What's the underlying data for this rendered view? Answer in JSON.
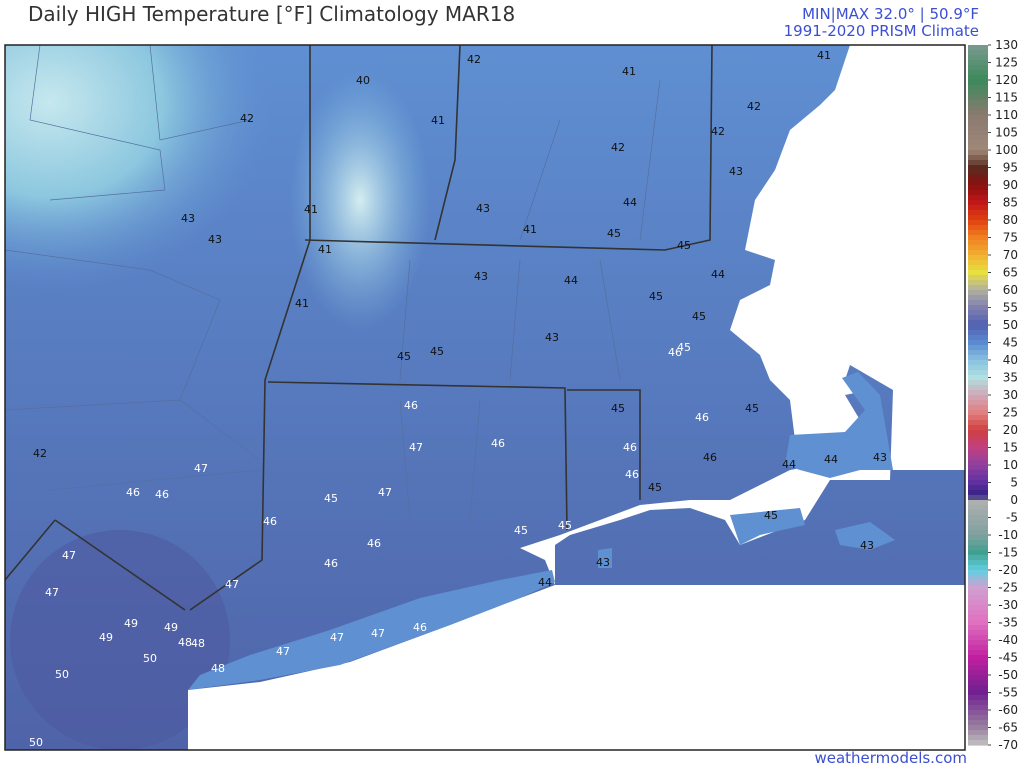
{
  "header": {
    "title": "Daily HIGH Temperature [°F]  Climatology MAR18",
    "minmax": "MIN|MAX 32.0° | 50.9°F",
    "source": "1991-2020 PRISM Climate"
  },
  "footer": {
    "credit": "weathermodels.com"
  },
  "map": {
    "labels": [
      40,
      42,
      41,
      41,
      42,
      42,
      41,
      42,
      42,
      43,
      43,
      43,
      41,
      43,
      44,
      41,
      45,
      45,
      41,
      43,
      44,
      44,
      45,
      41,
      45,
      43,
      45,
      46,
      45,
      45,
      46,
      47,
      46,
      45,
      46,
      45,
      46,
      46,
      45,
      46,
      44,
      44,
      43,
      42,
      47,
      46,
      46,
      45,
      47,
      46,
      45,
      45,
      46,
      46,
      45,
      43,
      43,
      44,
      47,
      47,
      47,
      49,
      49,
      49,
      48,
      48,
      50,
      48,
      47,
      47,
      47,
      46,
      50,
      50
    ],
    "colorbar_ticks": [
      130,
      125,
      120,
      115,
      110,
      105,
      100,
      95,
      90,
      85,
      80,
      75,
      70,
      65,
      60,
      55,
      50,
      45,
      40,
      35,
      30,
      25,
      20,
      15,
      10,
      5,
      0,
      -5,
      -10,
      -15,
      -20,
      -25,
      -30,
      -35,
      -40,
      -45,
      -50,
      -55,
      -60,
      -65,
      -70
    ]
  }
}
